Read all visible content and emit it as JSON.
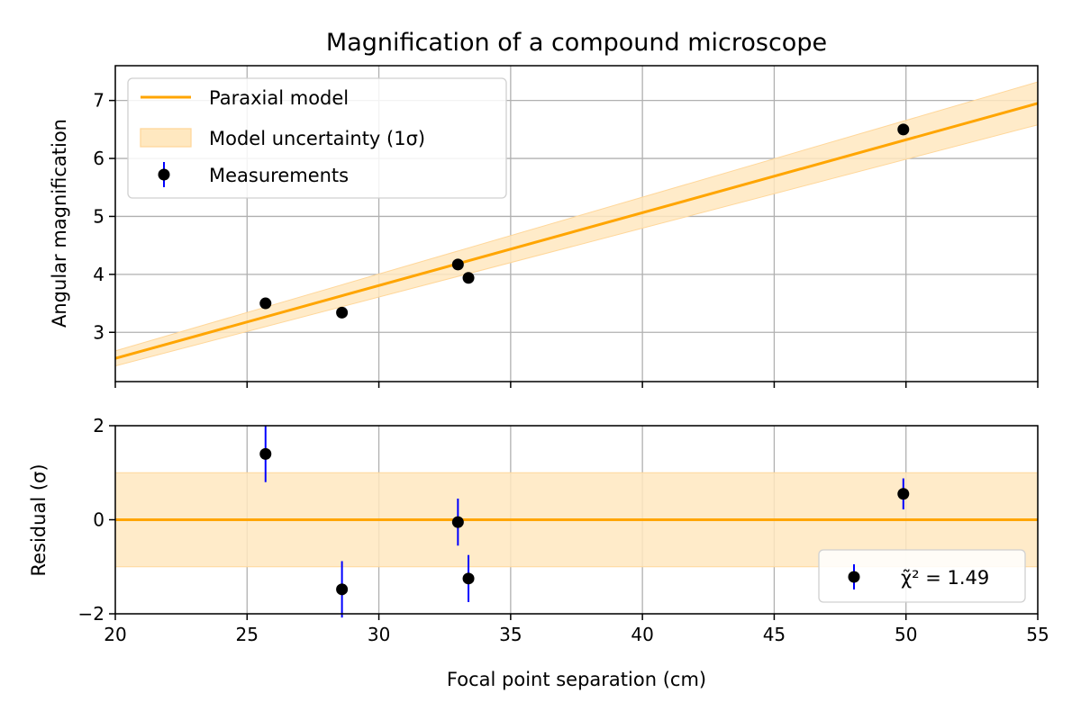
{
  "chart_data": [
    {
      "type": "scatter",
      "panel": "main",
      "title": "Magnification of a compound microscope",
      "xlabel": "",
      "ylabel": "Angular magnification",
      "xlim": [
        20,
        55
      ],
      "ylim": [
        2.15,
        7.6
      ],
      "xticks": [
        "20",
        "25",
        "30",
        "35",
        "40",
        "45",
        "50",
        "55"
      ],
      "yticks": [
        "3",
        "4",
        "5",
        "6",
        "7"
      ],
      "ytick_values": [
        3,
        4,
        5,
        6,
        7
      ],
      "grid": true,
      "legend": "top-left",
      "model": {
        "name": "Paraxial model",
        "color": "#ffa500",
        "x": [
          20,
          55
        ],
        "y": [
          2.55,
          6.95
        ],
        "band_name": "Model uncertainty (1σ)",
        "band_lower": [
          2.42,
          6.58
        ],
        "band_upper": [
          2.68,
          7.32
        ],
        "band_color": "#ffe8c0"
      },
      "measurements": {
        "name": "Measurements",
        "color": "#000000",
        "errorbar_color": "#0000ff",
        "x": [
          25.7,
          28.6,
          33.0,
          33.4,
          49.9
        ],
        "y": [
          3.5,
          3.34,
          4.17,
          3.94,
          6.5
        ],
        "yerr": [
          0.09,
          0.05,
          0.07,
          0.05,
          0.07
        ]
      }
    },
    {
      "type": "scatter",
      "panel": "residual",
      "xlabel": "Focal point separation (cm)",
      "ylabel": "Residual (σ)",
      "xlim": [
        20,
        55
      ],
      "ylim": [
        -2,
        2
      ],
      "xticks": [
        "20",
        "25",
        "30",
        "35",
        "40",
        "45",
        "50",
        "55"
      ],
      "yticks": [
        "2",
        "0",
        "−2"
      ],
      "ytick_values": [
        2,
        0,
        -2
      ],
      "grid": true,
      "legend": "bottom-right",
      "legend_label": "χ̃² = 1.49",
      "zero_line_color": "#ffa500",
      "band": [
        -1,
        1
      ],
      "band_color": "#ffe8c0",
      "points": {
        "color": "#000000",
        "errorbar_color": "#0000ff",
        "x": [
          25.7,
          28.6,
          33.0,
          33.4,
          49.9
        ],
        "y": [
          1.4,
          -1.48,
          -0.05,
          -1.25,
          0.55
        ],
        "yerr": [
          0.6,
          0.6,
          0.5,
          0.5,
          0.33
        ]
      }
    }
  ]
}
